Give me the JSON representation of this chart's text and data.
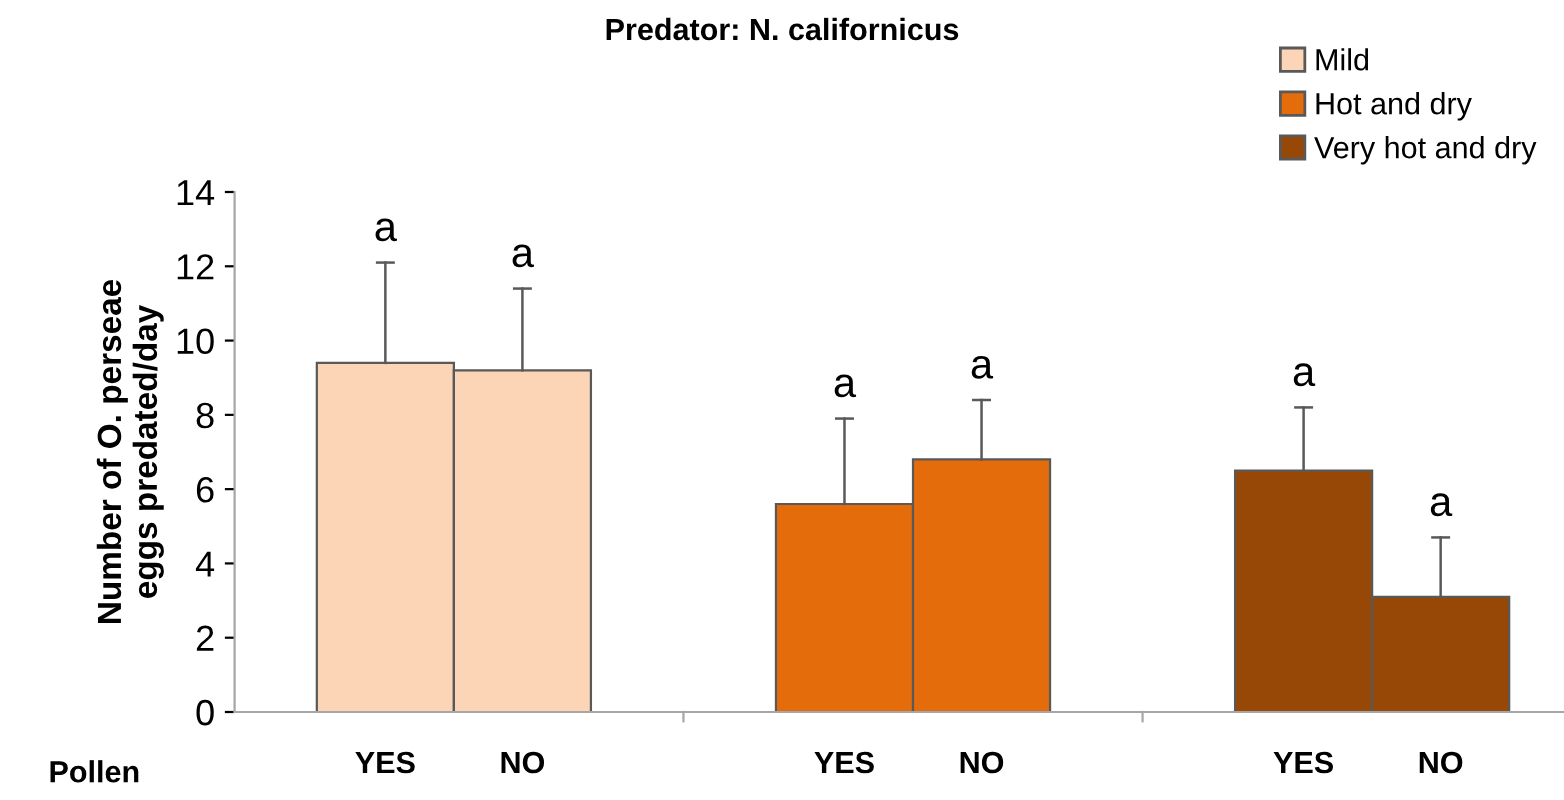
{
  "chart_data": {
    "type": "bar",
    "title": "Predator: N. californicus",
    "ylabel": "Number of O. perseae\neggs predated/day",
    "xlabel": "Pollen",
    "categories": [
      "YES",
      "NO",
      "YES",
      "NO",
      "YES",
      "NO"
    ],
    "series": [
      {
        "name": "Mild",
        "color": "#fbd5b5",
        "values": [
          9.4,
          9.2,
          null,
          null,
          null,
          null
        ],
        "errors": [
          [
            9.4,
            12.1
          ],
          [
            9.2,
            11.4
          ],
          null,
          null,
          null,
          null
        ],
        "value_labels": [
          "a",
          "a",
          null,
          null,
          null,
          null
        ]
      },
      {
        "name": "Hot and dry",
        "color": "#e46c0a",
        "values": [
          null,
          null,
          5.6,
          6.8,
          null,
          null
        ],
        "errors": [
          null,
          null,
          [
            5.6,
            7.9
          ],
          [
            6.8,
            8.4
          ],
          null,
          null
        ],
        "value_labels": [
          null,
          null,
          "a",
          "a",
          null,
          null
        ]
      },
      {
        "name": "Very hot and dry",
        "color": "#974806",
        "values": [
          null,
          null,
          null,
          null,
          6.5,
          3.1
        ],
        "errors": [
          null,
          null,
          null,
          null,
          [
            6.5,
            8.2
          ],
          [
            3.1,
            4.7
          ]
        ],
        "value_labels": [
          null,
          null,
          null,
          null,
          "a",
          "a"
        ]
      }
    ],
    "ylim": [
      0,
      14
    ],
    "yticks": [
      0,
      2,
      4,
      6,
      8,
      10,
      12,
      14
    ],
    "grid": false,
    "legend": "top right"
  }
}
